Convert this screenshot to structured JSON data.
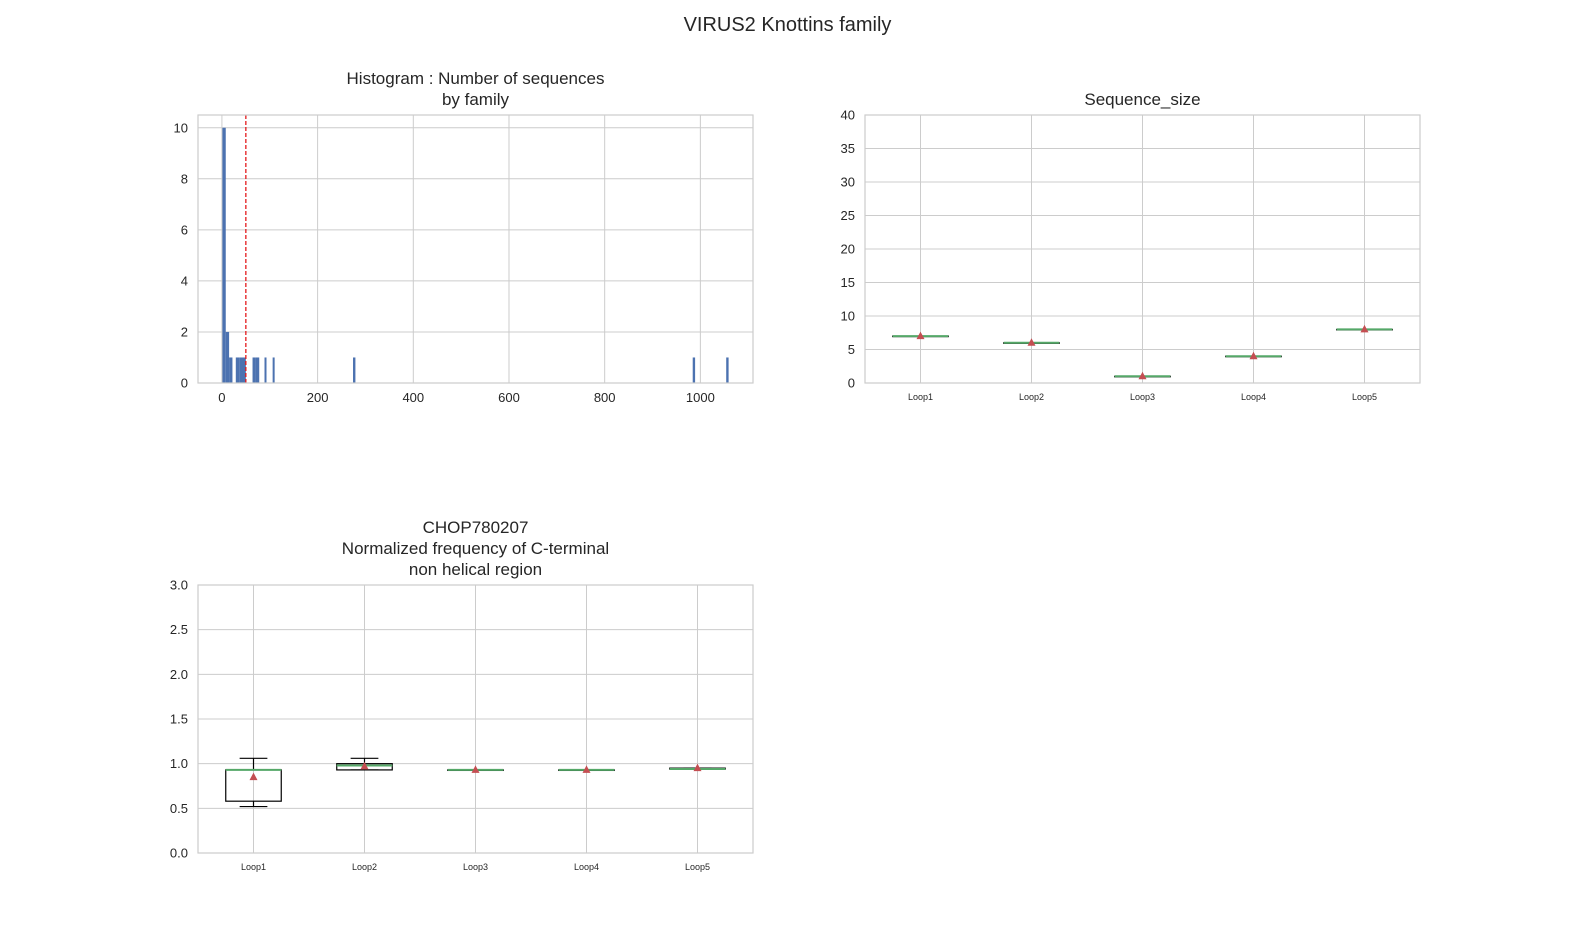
{
  "figure": {
    "title": "VIRUS2 Knottins family"
  },
  "chart_data": [
    {
      "type": "histogram",
      "title": [
        "Histogram : Number of sequences",
        "by family"
      ],
      "xlabel": "",
      "ylabel": "",
      "xlim": [
        -50,
        1110
      ],
      "ylim": [
        0,
        10.5
      ],
      "xticks": [
        0,
        200,
        400,
        600,
        800,
        1000
      ],
      "yticks": [
        0,
        2,
        4,
        6,
        8,
        10
      ],
      "grid": true,
      "bar_color": "#4c72b0",
      "bins": [
        {
          "start": 1,
          "end": 8,
          "count": 10
        },
        {
          "start": 8,
          "end": 15,
          "count": 2
        },
        {
          "start": 15,
          "end": 22,
          "count": 1
        },
        {
          "start": 22,
          "end": 29,
          "count": 0
        },
        {
          "start": 29,
          "end": 36,
          "count": 1
        },
        {
          "start": 36,
          "end": 43,
          "count": 1
        },
        {
          "start": 43,
          "end": 50,
          "count": 1
        },
        {
          "start": 64,
          "end": 71,
          "count": 1
        },
        {
          "start": 71,
          "end": 78,
          "count": 1
        },
        {
          "start": 89,
          "end": 93,
          "count": 1
        },
        {
          "start": 106,
          "end": 110,
          "count": 1
        },
        {
          "start": 274,
          "end": 279,
          "count": 1
        },
        {
          "start": 984,
          "end": 989,
          "count": 1
        },
        {
          "start": 1054,
          "end": 1059,
          "count": 1
        }
      ],
      "threshold_line": {
        "x": 50,
        "color": "#e41a1c",
        "style": "dashed"
      }
    },
    {
      "type": "box",
      "title": [
        "Sequence_size"
      ],
      "ylim": [
        0,
        40
      ],
      "yticks": [
        0,
        5,
        10,
        15,
        20,
        25,
        30,
        35,
        40
      ],
      "grid": true,
      "categories": [
        "Loop1",
        "Loop2",
        "Loop3",
        "Loop4",
        "Loop5"
      ],
      "boxes": [
        {
          "min": 7,
          "q1": 7,
          "median": 7,
          "q3": 7,
          "max": 7,
          "mean": 7
        },
        {
          "min": 6,
          "q1": 6,
          "median": 6,
          "q3": 6,
          "max": 6,
          "mean": 6
        },
        {
          "min": 1,
          "q1": 1,
          "median": 1,
          "q3": 1,
          "max": 1,
          "mean": 1
        },
        {
          "min": 4,
          "q1": 4,
          "median": 4,
          "q3": 4,
          "max": 4,
          "mean": 4
        },
        {
          "min": 8,
          "q1": 8,
          "median": 8,
          "q3": 8,
          "max": 8,
          "mean": 8
        }
      ],
      "median_color": "#55a868",
      "mean_color": "#c44e52"
    },
    {
      "type": "box",
      "title": [
        "CHOP780207",
        "Normalized frequency of C-terminal",
        "non helical region"
      ],
      "ylim": [
        0,
        3
      ],
      "yticks": [
        0.0,
        0.5,
        1.0,
        1.5,
        2.0,
        2.5,
        3.0
      ],
      "grid": true,
      "categories": [
        "Loop1",
        "Loop2",
        "Loop3",
        "Loop4",
        "Loop5"
      ],
      "boxes": [
        {
          "min": 0.52,
          "q1": 0.58,
          "median": 0.93,
          "q3": 0.93,
          "max": 1.06,
          "mean": 0.85
        },
        {
          "min": 0.93,
          "q1": 0.93,
          "median": 0.98,
          "q3": 1.0,
          "max": 1.06,
          "mean": 0.97
        },
        {
          "min": 0.93,
          "q1": 0.93,
          "median": 0.93,
          "q3": 0.93,
          "max": 0.93,
          "mean": 0.93
        },
        {
          "min": 0.93,
          "q1": 0.93,
          "median": 0.93,
          "q3": 0.93,
          "max": 0.93,
          "mean": 0.93
        },
        {
          "min": 0.94,
          "q1": 0.94,
          "median": 0.94,
          "q3": 0.95,
          "max": 0.95,
          "mean": 0.95
        }
      ],
      "median_color": "#55a868",
      "mean_color": "#c44e52"
    }
  ]
}
